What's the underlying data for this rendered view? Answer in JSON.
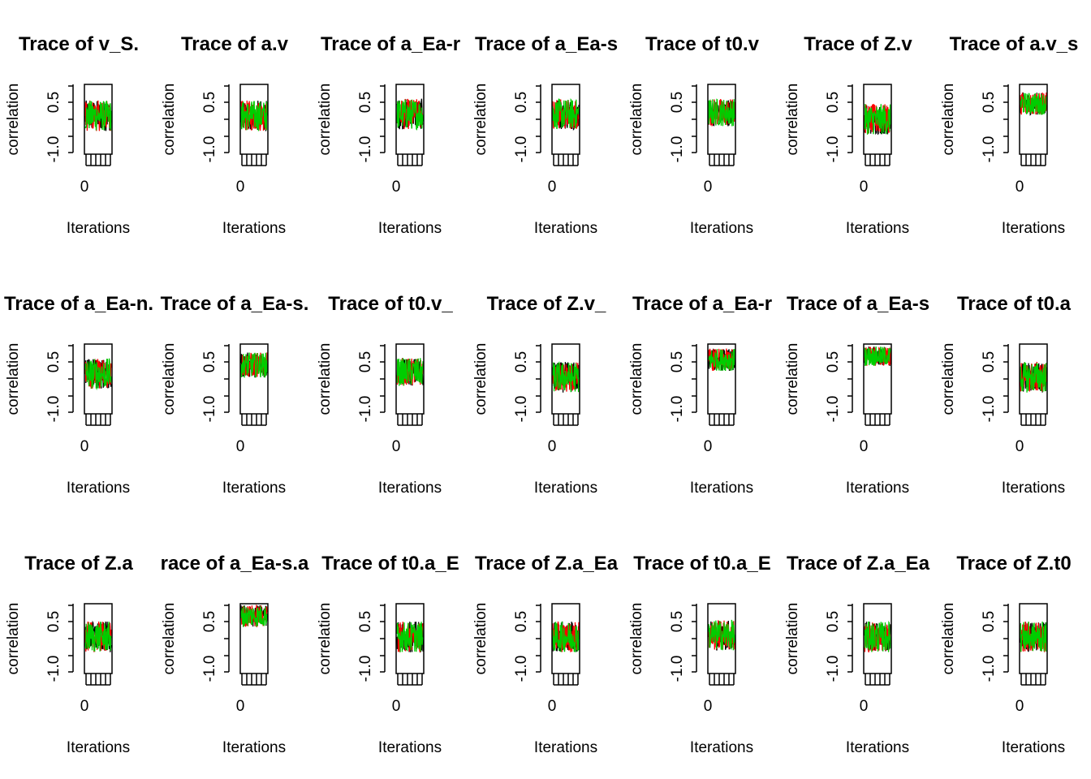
{
  "chart_data": {
    "type": "line",
    "layout": {
      "rows": 3,
      "cols": 7
    },
    "series_colors": [
      "#000000",
      "#ff0000",
      "#00cd00"
    ],
    "xlabel": "Iterations",
    "ylabel": "correlation",
    "xtick_label": "0",
    "ytick_labels": [
      "-1.0",
      "0.5"
    ],
    "ylim": [
      -1.0,
      1.0
    ],
    "panels": [
      {
        "title": "Trace of v_S.",
        "center": 0.1,
        "spread": 0.55
      },
      {
        "title": "Trace of a.v",
        "center": 0.1,
        "spread": 0.55
      },
      {
        "title": "Trace of a_Ea-r",
        "center": 0.15,
        "spread": 0.55
      },
      {
        "title": "Trace of a_Ea-s",
        "center": 0.15,
        "spread": 0.55
      },
      {
        "title": "Trace of t0.v",
        "center": 0.2,
        "spread": 0.5
      },
      {
        "title": "Trace of Z.v",
        "center": 0.0,
        "spread": 0.55
      },
      {
        "title": "Trace of a.v_s",
        "center": 0.45,
        "spread": 0.4
      },
      {
        "title": "Trace of a_Ea-n.",
        "center": 0.15,
        "spread": 0.55
      },
      {
        "title": "Trace of a_Ea-s.",
        "center": 0.4,
        "spread": 0.45
      },
      {
        "title": "Trace of t0.v_",
        "center": 0.2,
        "spread": 0.5
      },
      {
        "title": "Trace of Z.v_",
        "center": 0.05,
        "spread": 0.55
      },
      {
        "title": "Trace of a_Ea-r",
        "center": 0.55,
        "spread": 0.4
      },
      {
        "title": "Trace of a_Ea-s",
        "center": 0.65,
        "spread": 0.35
      },
      {
        "title": "Trace of t0.a",
        "center": 0.05,
        "spread": 0.55
      },
      {
        "title": "Trace of Z.a",
        "center": 0.05,
        "spread": 0.55
      },
      {
        "title": "race of a_Ea-s.a",
        "center": 0.65,
        "spread": 0.4
      },
      {
        "title": "Trace of t0.a_E",
        "center": 0.05,
        "spread": 0.55
      },
      {
        "title": "Trace of Z.a_Ea",
        "center": 0.05,
        "spread": 0.55
      },
      {
        "title": "Trace of t0.a_E",
        "center": 0.1,
        "spread": 0.55
      },
      {
        "title": "Trace of Z.a_Ea",
        "center": 0.05,
        "spread": 0.55
      },
      {
        "title": "Trace of Z.t0",
        "center": 0.05,
        "spread": 0.55
      }
    ]
  }
}
